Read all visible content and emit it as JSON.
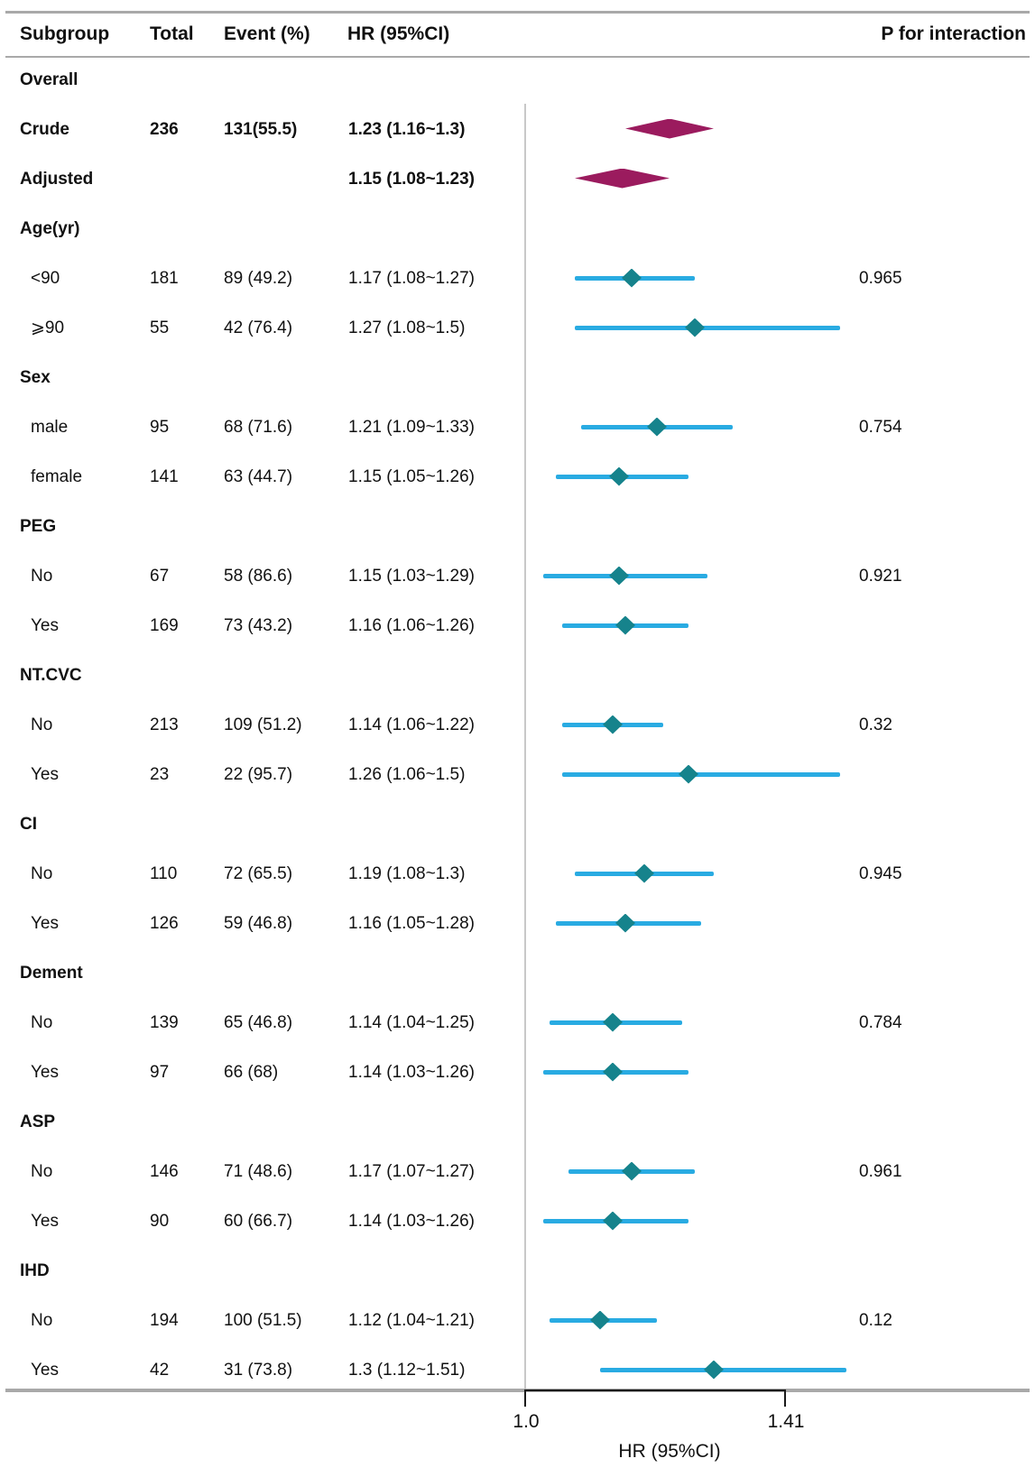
{
  "header": {
    "subgroup": "Subgroup",
    "total": "Total",
    "event": "Event (%)",
    "hr": "HR (95%CI)",
    "p_interaction": "P for interaction"
  },
  "colors": {
    "ci_line": "#29abe2",
    "subgroup_marker": "#16838c",
    "overall_marker": "#9b1b5e",
    "rule": "#a9a9a9",
    "reference_line": "#c8c8c8",
    "axis": "#1a1a1a",
    "text": "#111111"
  },
  "chart_data": {
    "type": "scatter",
    "subtype": "forest-plot",
    "xlabel": "HR (95%CI)",
    "x_ticks": [
      "1.0",
      "1.41"
    ],
    "x_tick_values": [
      1.0,
      1.41
    ],
    "reference_line_x": 1.0,
    "legend": "none",
    "grid": "off",
    "rows": [
      {
        "type": "section",
        "label": "Overall"
      },
      {
        "type": "overall",
        "label": "Crude",
        "total": "236",
        "event": "131(55.5)",
        "hr_text": "1.23 (1.16~1.3)",
        "hr": 1.23,
        "ci_low": 1.16,
        "ci_high": 1.3
      },
      {
        "type": "overall",
        "label": "Adjusted",
        "hr_text": "1.15 (1.08~1.23)",
        "hr": 1.15,
        "ci_low": 1.08,
        "ci_high": 1.23
      },
      {
        "type": "section",
        "label": "Age(yr)"
      },
      {
        "type": "data",
        "label": "<90",
        "total": "181",
        "event": "89 (49.2)",
        "hr_text": "1.17 (1.08~1.27)",
        "hr": 1.17,
        "ci_low": 1.08,
        "ci_high": 1.27,
        "p": "0.965"
      },
      {
        "type": "data",
        "label": "⩾90",
        "total": "55",
        "event": "42 (76.4)",
        "hr_text": "1.27 (1.08~1.5)",
        "hr": 1.27,
        "ci_low": 1.08,
        "ci_high": 1.5
      },
      {
        "type": "section",
        "label": "Sex"
      },
      {
        "type": "data",
        "label": "male",
        "total": "95",
        "event": "68 (71.6)",
        "hr_text": "1.21 (1.09~1.33)",
        "hr": 1.21,
        "ci_low": 1.09,
        "ci_high": 1.33,
        "p": "0.754"
      },
      {
        "type": "data",
        "label": "female",
        "total": "141",
        "event": "63 (44.7)",
        "hr_text": "1.15 (1.05~1.26)",
        "hr": 1.15,
        "ci_low": 1.05,
        "ci_high": 1.26
      },
      {
        "type": "section",
        "label": "PEG"
      },
      {
        "type": "data",
        "label": "No",
        "total": "67",
        "event": "58 (86.6)",
        "hr_text": "1.15 (1.03~1.29)",
        "hr": 1.15,
        "ci_low": 1.03,
        "ci_high": 1.29,
        "p": "0.921"
      },
      {
        "type": "data",
        "label": "Yes",
        "total": "169",
        "event": "73 (43.2)",
        "hr_text": "1.16 (1.06~1.26)",
        "hr": 1.16,
        "ci_low": 1.06,
        "ci_high": 1.26
      },
      {
        "type": "section",
        "label": "NT.CVC"
      },
      {
        "type": "data",
        "label": "No",
        "total": "213",
        "event": "109 (51.2)",
        "hr_text": "1.14 (1.06~1.22)",
        "hr": 1.14,
        "ci_low": 1.06,
        "ci_high": 1.22,
        "p": "0.32"
      },
      {
        "type": "data",
        "label": "Yes",
        "total": "23",
        "event": "22 (95.7)",
        "hr_text": "1.26 (1.06~1.5)",
        "hr": 1.26,
        "ci_low": 1.06,
        "ci_high": 1.5
      },
      {
        "type": "section",
        "label": "CI"
      },
      {
        "type": "data",
        "label": "No",
        "total": "110",
        "event": "72 (65.5)",
        "hr_text": "1.19 (1.08~1.3)",
        "hr": 1.19,
        "ci_low": 1.08,
        "ci_high": 1.3,
        "p": "0.945"
      },
      {
        "type": "data",
        "label": "Yes",
        "total": "126",
        "event": "59 (46.8)",
        "hr_text": "1.16 (1.05~1.28)",
        "hr": 1.16,
        "ci_low": 1.05,
        "ci_high": 1.28
      },
      {
        "type": "section",
        "label": "Dement"
      },
      {
        "type": "data",
        "label": "No",
        "total": "139",
        "event": "65 (46.8)",
        "hr_text": "1.14 (1.04~1.25)",
        "hr": 1.14,
        "ci_low": 1.04,
        "ci_high": 1.25,
        "p": "0.784"
      },
      {
        "type": "data",
        "label": "Yes",
        "total": "97",
        "event": "66 (68)",
        "hr_text": "1.14 (1.03~1.26)",
        "hr": 1.14,
        "ci_low": 1.03,
        "ci_high": 1.26
      },
      {
        "type": "section",
        "label": "ASP"
      },
      {
        "type": "data",
        "label": "No",
        "total": "146",
        "event": "71 (48.6)",
        "hr_text": "1.17 (1.07~1.27)",
        "hr": 1.17,
        "ci_low": 1.07,
        "ci_high": 1.27,
        "p": "0.961"
      },
      {
        "type": "data",
        "label": "Yes",
        "total": "90",
        "event": "60 (66.7)",
        "hr_text": "1.14 (1.03~1.26)",
        "hr": 1.14,
        "ci_low": 1.03,
        "ci_high": 1.26
      },
      {
        "type": "section",
        "label": "IHD"
      },
      {
        "type": "data",
        "label": "No",
        "total": "194",
        "event": "100 (51.5)",
        "hr_text": "1.12 (1.04~1.21)",
        "hr": 1.12,
        "ci_low": 1.04,
        "ci_high": 1.21,
        "p": "0.12"
      },
      {
        "type": "data",
        "label": "Yes",
        "total": "42",
        "event": "31 (73.8)",
        "hr_text": "1.3 (1.12~1.51)",
        "hr": 1.3,
        "ci_low": 1.12,
        "ci_high": 1.51
      }
    ]
  }
}
